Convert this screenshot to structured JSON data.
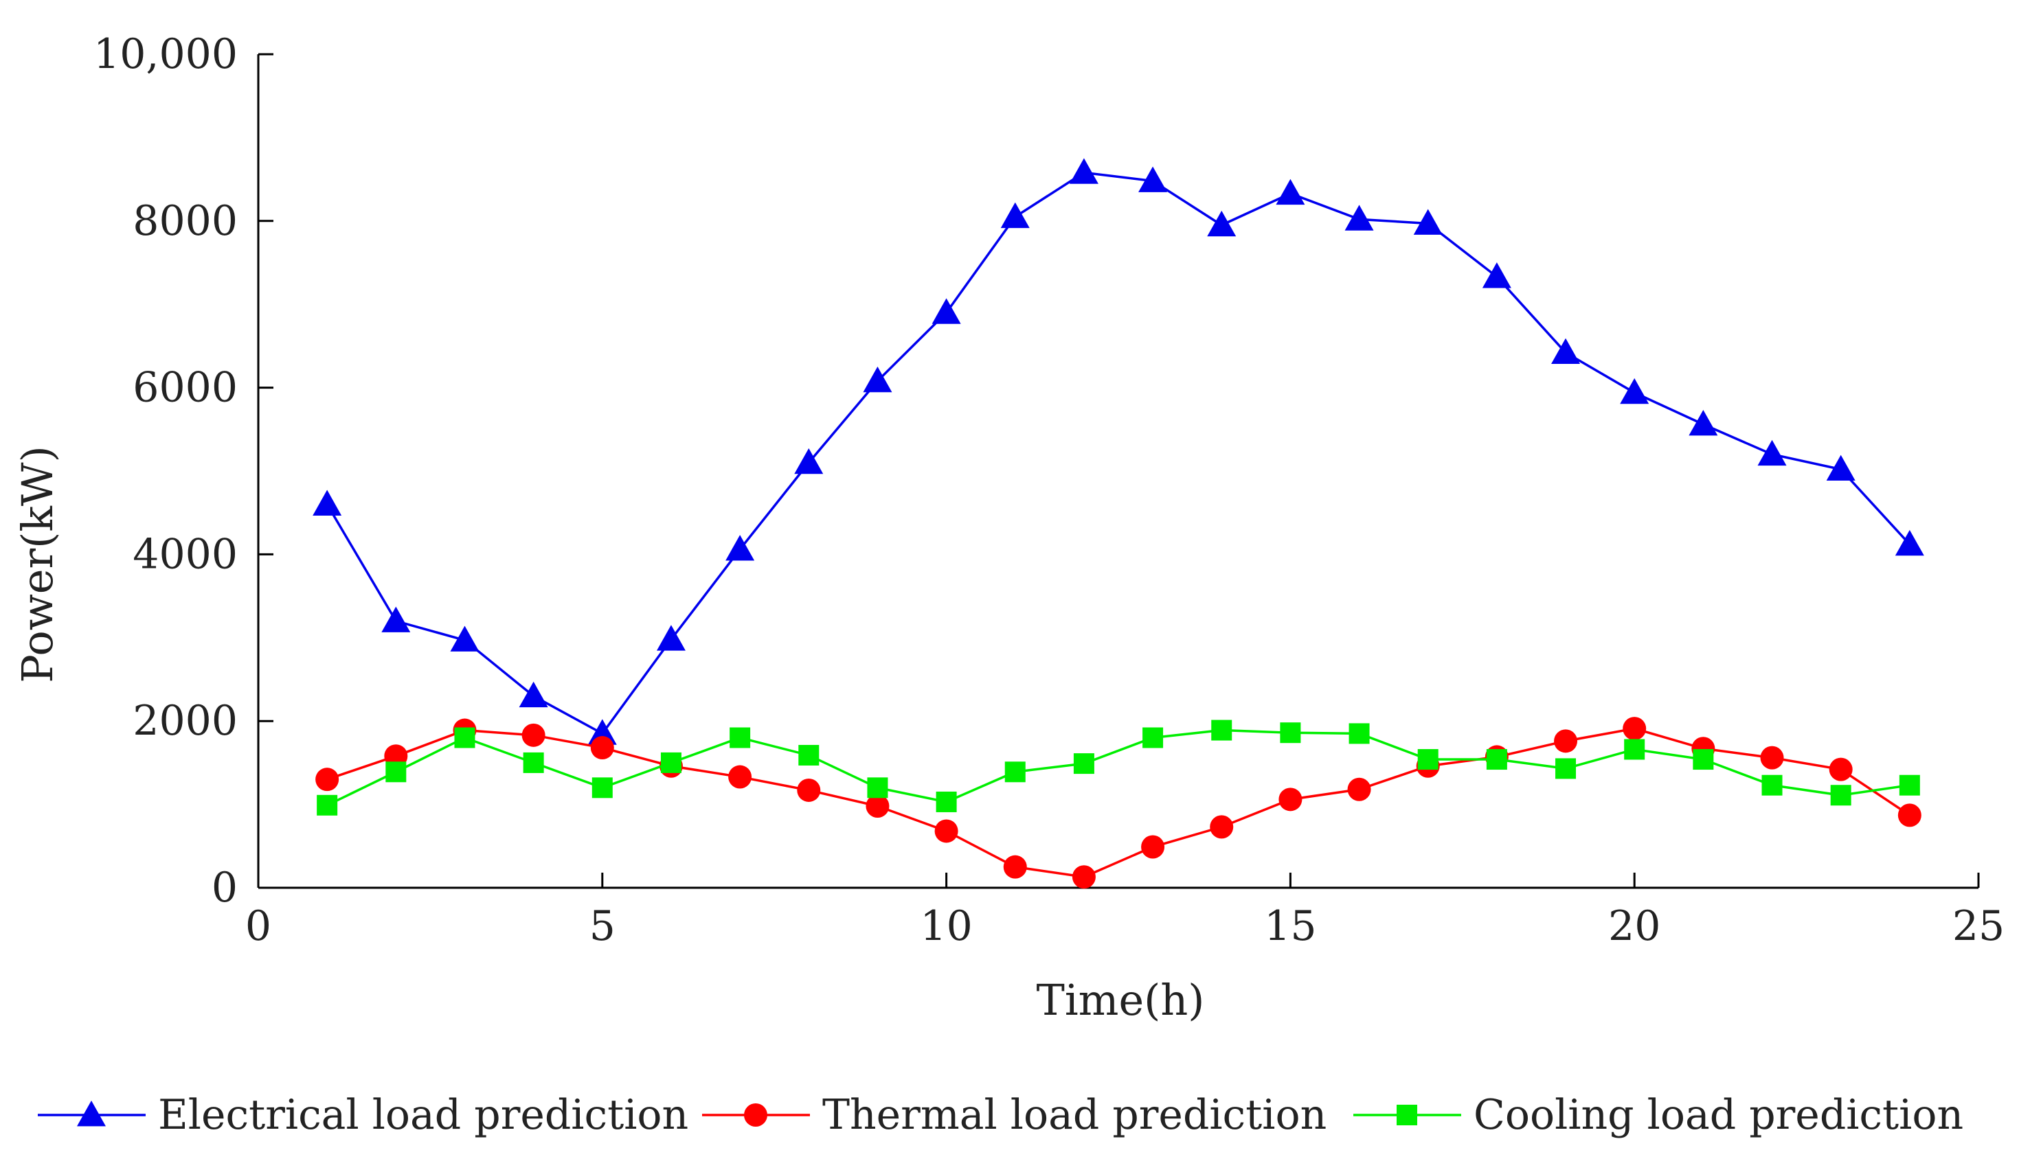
{
  "chart_data": {
    "type": "line",
    "xlabel": "Time(h)",
    "ylabel": "Power(kW)",
    "xlim": [
      0,
      25
    ],
    "ylim": [
      0,
      10000
    ],
    "xticks": [
      0,
      5,
      10,
      15,
      20,
      25
    ],
    "xtick_labels": [
      "0",
      "5",
      "10",
      "15",
      "20",
      "25"
    ],
    "yticks": [
      0,
      2000,
      4000,
      6000,
      8000,
      10000
    ],
    "ytick_labels": [
      "0",
      "2000",
      "4000",
      "6000",
      "8000",
      "10,000"
    ],
    "grid": false,
    "legend_position": "bottom",
    "x": [
      1,
      2,
      3,
      4,
      5,
      6,
      7,
      8,
      9,
      10,
      11,
      12,
      13,
      14,
      15,
      16,
      17,
      18,
      19,
      20,
      21,
      22,
      23,
      24
    ],
    "series": [
      {
        "name": "Electrical load prediction",
        "color": "#0000ee",
        "marker": "triangle",
        "values": [
          4600,
          3200,
          2970,
          2300,
          1850,
          2980,
          4060,
          5100,
          6080,
          6900,
          8050,
          8580,
          8480,
          7950,
          8330,
          8020,
          7970,
          7330,
          6420,
          5940,
          5560,
          5200,
          5020,
          4120
        ]
      },
      {
        "name": "Thermal load prediction",
        "color": "#ff0000",
        "marker": "circle",
        "values": [
          1300,
          1580,
          1890,
          1830,
          1680,
          1460,
          1330,
          1170,
          980,
          680,
          250,
          130,
          490,
          730,
          1060,
          1180,
          1460,
          1570,
          1760,
          1910,
          1670,
          1560,
          1420,
          870
        ]
      },
      {
        "name": "Cooling load prediction",
        "color": "#00ee00",
        "marker": "square",
        "values": [
          990,
          1390,
          1800,
          1500,
          1200,
          1500,
          1800,
          1590,
          1200,
          1030,
          1390,
          1490,
          1800,
          1890,
          1860,
          1850,
          1540,
          1540,
          1430,
          1660,
          1540,
          1230,
          1110,
          1230
        ]
      }
    ]
  }
}
